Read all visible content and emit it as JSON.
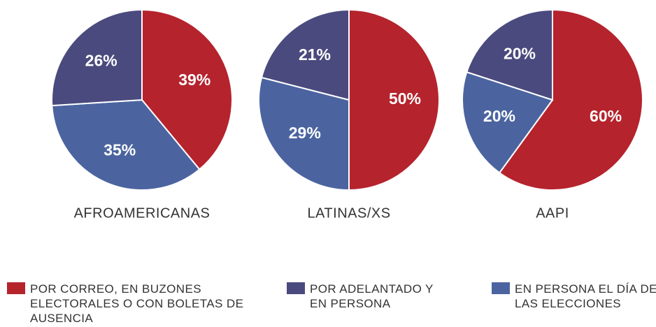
{
  "chart_data": [
    {
      "type": "pie",
      "title": "AFROAMERICANAS",
      "categories": [
        "POR CORREO, EN BUZONES ELECTORALES O CON BOLETAS DE AUSENCIA",
        "POR ADELANTADO Y EN PERSONA",
        "EN PERSONA EL DÍA DE LAS ELECCIONES"
      ],
      "colors": [
        "#b5232d",
        "#4a4a7e",
        "#4b64a0"
      ],
      "values": [
        39,
        26,
        35
      ],
      "value_labels": [
        "39%",
        "26%",
        "35%"
      ]
    },
    {
      "type": "pie",
      "title": "LATINAS/XS",
      "categories": [
        "POR CORREO, EN BUZONES ELECTORALES O CON BOLETAS DE AUSENCIA",
        "POR ADELANTADO Y EN PERSONA",
        "EN PERSONA EL DÍA DE LAS ELECCIONES"
      ],
      "colors": [
        "#b5232d",
        "#4a4a7e",
        "#4b64a0"
      ],
      "values": [
        50,
        21,
        29
      ],
      "value_labels": [
        "50%",
        "21%",
        "29%"
      ]
    },
    {
      "type": "pie",
      "title": "AAPI",
      "categories": [
        "POR CORREO, EN BUZONES ELECTORALES O CON BOLETAS DE AUSENCIA",
        "POR ADELANTADO Y EN PERSONA",
        "EN PERSONA EL DÍA DE LAS ELECCIONES"
      ],
      "colors": [
        "#b5232d",
        "#4a4a7e",
        "#4b64a0"
      ],
      "values": [
        60,
        20,
        20
      ],
      "value_labels": [
        "60%",
        "20%",
        "20%"
      ]
    }
  ]
}
